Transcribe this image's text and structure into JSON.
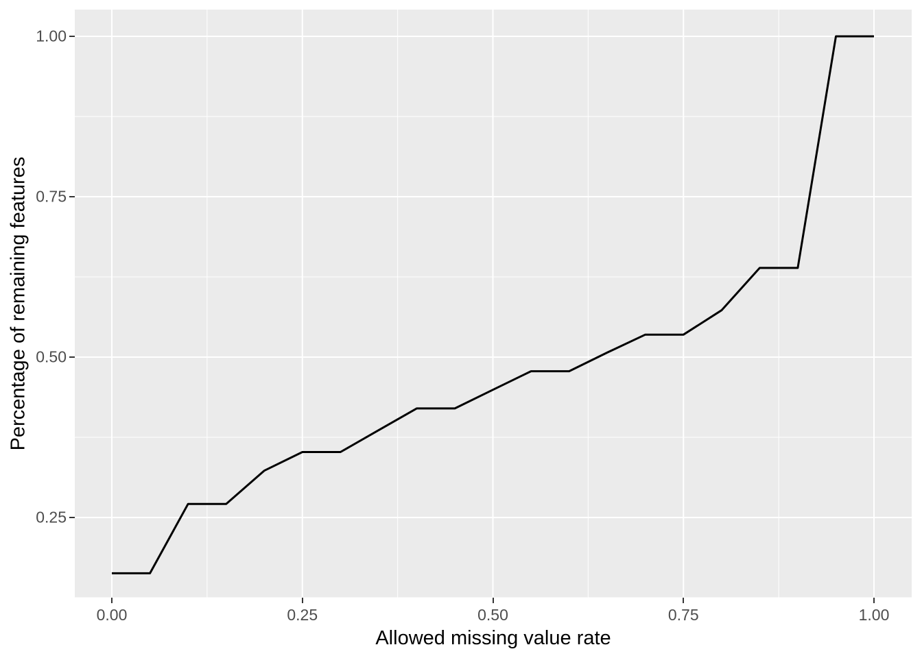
{
  "chart_data": {
    "type": "line",
    "title": "",
    "xlabel": "Allowed missing value rate",
    "ylabel": "Percentage of remaining features",
    "legend": "none",
    "grid": {
      "major": true,
      "minor": true,
      "color": "#FFFFFF"
    },
    "x": [
      0.0,
      0.05,
      0.1,
      0.15,
      0.2,
      0.25,
      0.3,
      0.35,
      0.4,
      0.45,
      0.5,
      0.55,
      0.6,
      0.65,
      0.7,
      0.75,
      0.8,
      0.85,
      0.9,
      0.95,
      1.0
    ],
    "series": [
      {
        "name": "percentage-of-remaining-features",
        "values": [
          0.163,
          0.163,
          0.271,
          0.271,
          0.323,
          0.352,
          0.352,
          0.386,
          0.42,
          0.42,
          0.449,
          0.478,
          0.478,
          0.507,
          0.535,
          0.535,
          0.573,
          0.639,
          0.639,
          1.0,
          1.0
        ]
      }
    ],
    "x_axis": {
      "range": [
        -0.048,
        1.048
      ],
      "major_ticks": [
        0.0,
        0.25,
        0.5,
        0.75,
        1.0
      ],
      "tick_labels": [
        "0.00",
        "0.25",
        "0.50",
        "0.75",
        "1.00"
      ],
      "minor_ticks": [
        0.125,
        0.375,
        0.625,
        0.875
      ]
    },
    "y_axis": {
      "range": [
        0.121,
        1.043
      ],
      "major_ticks": [
        0.25,
        0.5,
        0.75,
        1.0
      ],
      "tick_labels": [
        "0.25",
        "0.50",
        "0.75",
        "1.00"
      ],
      "minor_ticks": [
        0.125,
        0.375,
        0.625,
        0.875
      ]
    },
    "style": {
      "panel_background": "#EBEBEB",
      "outer_background": "#FFFFFF",
      "line_color": "#000000",
      "gridline_color": "#FFFFFF",
      "axis_text_color": "#4D4D4D",
      "axis_title_color": "#000000",
      "tick_mark_color": "#333333"
    }
  }
}
